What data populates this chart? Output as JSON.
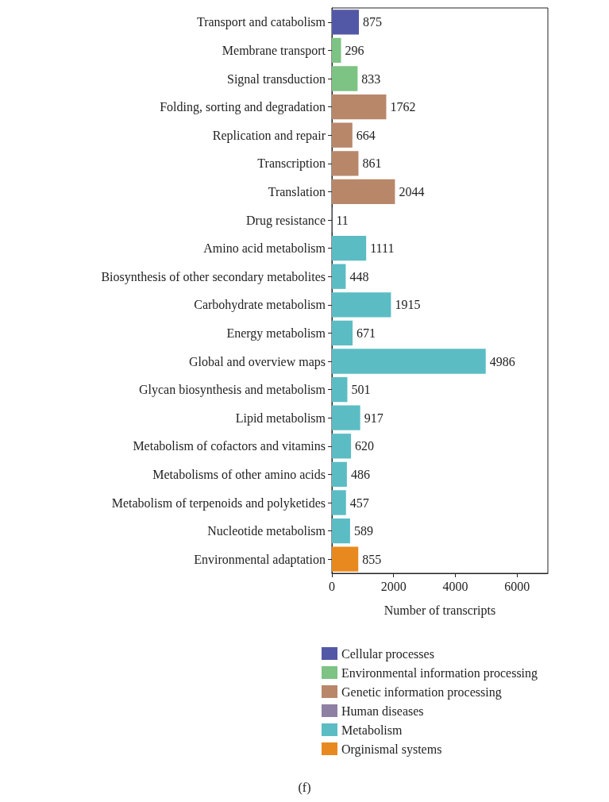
{
  "chart_data": {
    "type": "bar",
    "orientation": "horizontal",
    "xlabel": "Number of transcripts",
    "categories": [
      "Transport and catabolism",
      "Membrane transport",
      "Signal transduction",
      "Folding, sorting and degradation",
      "Replication and repair",
      "Transcription",
      "Translation",
      "Drug resistance",
      "Amino acid metabolism",
      "Biosynthesis of other secondary metabolites",
      "Carbohydrate metabolism",
      "Energy metabolism",
      "Global and overview maps",
      "Glycan biosynthesis and metabolism",
      "Lipid metabolism",
      "Metabolism of cofactors and vitamins",
      "Metabolisms of other amino acids",
      "Metabolism of terpenoids and polyketides",
      "Nucleotide metabolism",
      "Environmental adaptation"
    ],
    "series": [
      {
        "name": "Cellular processes",
        "color": "#5358a6",
        "values": [
          875,
          null,
          null,
          null,
          null,
          null,
          null,
          null,
          null,
          null,
          null,
          null,
          null,
          null,
          null,
          null,
          null,
          null,
          null,
          null
        ]
      },
      {
        "name": "Environmental information processing",
        "color": "#7dc383",
        "values": [
          null,
          296,
          833,
          null,
          null,
          null,
          null,
          null,
          null,
          null,
          null,
          null,
          null,
          null,
          null,
          null,
          null,
          null,
          null,
          null
        ]
      },
      {
        "name": "Genetic information processing",
        "color": "#b8876a",
        "values": [
          null,
          null,
          null,
          1762,
          664,
          861,
          2044,
          null,
          null,
          null,
          null,
          null,
          null,
          null,
          null,
          null,
          null,
          null,
          null,
          null
        ]
      },
      {
        "name": "Human diseases",
        "color": "#8e80a3",
        "values": [
          null,
          null,
          null,
          null,
          null,
          null,
          null,
          11,
          null,
          null,
          null,
          null,
          null,
          null,
          null,
          null,
          null,
          null,
          null,
          null
        ]
      },
      {
        "name": "Metabolism",
        "color": "#5bbcc4",
        "values": [
          null,
          null,
          null,
          null,
          null,
          null,
          null,
          null,
          1111,
          448,
          1915,
          671,
          4986,
          501,
          917,
          620,
          486,
          457,
          589,
          null
        ]
      },
      {
        "name": "Orginismal systems",
        "color": "#e8891f",
        "values": [
          null,
          null,
          null,
          null,
          null,
          null,
          null,
          null,
          null,
          null,
          null,
          null,
          null,
          null,
          null,
          null,
          null,
          null,
          null,
          855
        ]
      }
    ],
    "xlim": [
      0,
      7000
    ],
    "xticks": [
      0,
      2000,
      4000,
      6000
    ],
    "data_labels": true,
    "grid": false,
    "legend": "bottom",
    "annotations": [
      "(f)"
    ]
  }
}
